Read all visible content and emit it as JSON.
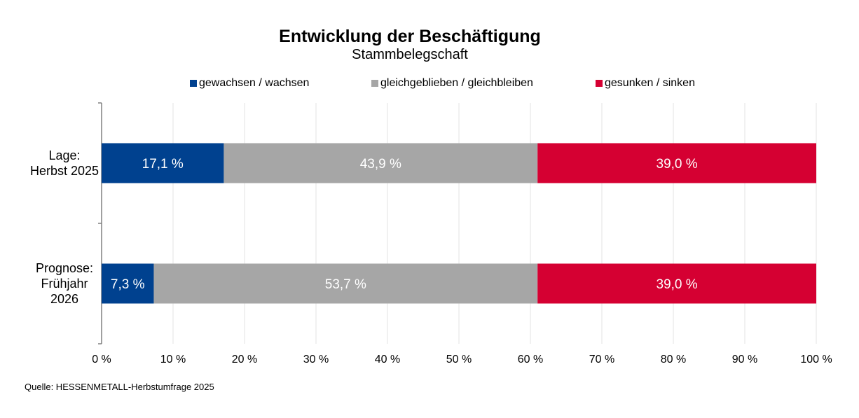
{
  "chart_data": {
    "type": "bar",
    "orientation": "horizontal",
    "stacked": true,
    "title": "Entwicklung der Beschäftigung",
    "subtitle": "Stammbelegschaft",
    "categories": [
      "Lage:\nHerbst 2025",
      "Prognose:\nFrühjahr\n2026"
    ],
    "series": [
      {
        "name": "gewachsen / wachsen",
        "color": "#00418f",
        "values": [
          17.1,
          7.3
        ],
        "labels": [
          "17,1 %",
          "7,3 %"
        ]
      },
      {
        "name": "gleichgeblieben / gleichbleiben",
        "color": "#a6a6a6",
        "values": [
          43.9,
          53.7
        ],
        "labels": [
          "43,9 %",
          "53,7 %"
        ]
      },
      {
        "name": "gesunken / sinken",
        "color": "#d50032",
        "values": [
          39.0,
          39.0
        ],
        "labels": [
          "39,0 %",
          "39,0 %"
        ]
      }
    ],
    "xlim": [
      0,
      100
    ],
    "xticks": [
      "0 %",
      "10 %",
      "20 %",
      "30 %",
      "40 %",
      "50 %",
      "60 %",
      "70 %",
      "80 %",
      "90 %",
      "100 %"
    ],
    "grid": "vertical",
    "legend": "top",
    "source": "Quelle: HESSENMETALL-Herbstumfrage 2025"
  }
}
